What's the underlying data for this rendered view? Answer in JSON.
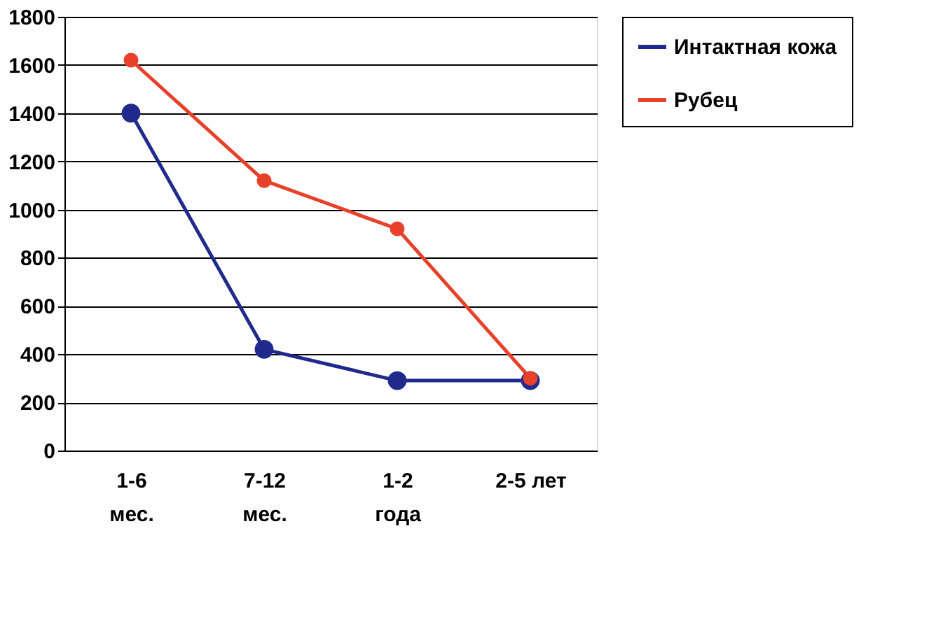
{
  "chart_data": {
    "type": "line",
    "categories": [
      "1-6\nмес.",
      "7-12\nмес.",
      "1-2\nгода",
      "2-5 лет"
    ],
    "series": [
      {
        "name": "Интактная кожа",
        "color": "#1f2a8c",
        "values": [
          1400,
          420,
          290,
          290
        ]
      },
      {
        "name": "Рубец",
        "color": "#e8412a",
        "values": [
          1620,
          1120,
          920,
          300
        ]
      }
    ],
    "ylim": [
      0,
      1800
    ],
    "yticks": [
      0,
      200,
      400,
      600,
      800,
      1000,
      1200,
      1400,
      1600,
      1800
    ],
    "grid": "y",
    "legend": "right",
    "marker": "circle",
    "line_style": "solid"
  }
}
